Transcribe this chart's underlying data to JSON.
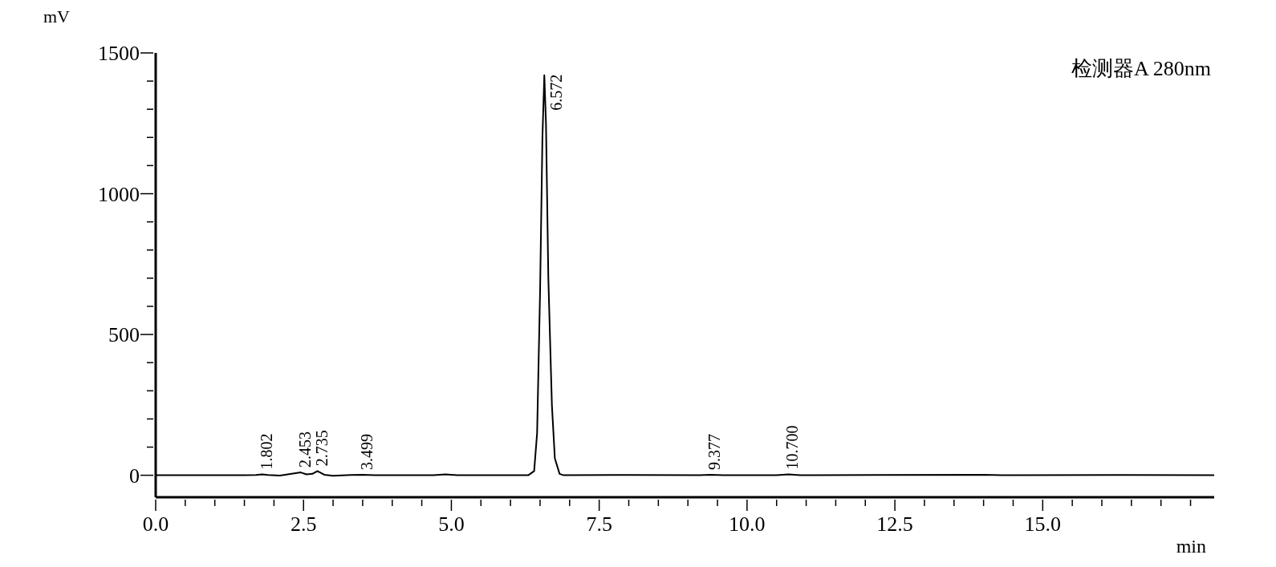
{
  "chart_data": {
    "type": "line",
    "xlabel": "min",
    "ylabel": "mV",
    "x": [
      0,
      1.5,
      1.7,
      1.8,
      1.9,
      2.1,
      2.3,
      2.453,
      2.55,
      2.65,
      2.735,
      2.85,
      3.0,
      3.3,
      3.5,
      3.7,
      4.7,
      4.9,
      5.1,
      6.3,
      6.4,
      6.45,
      6.5,
      6.54,
      6.572,
      6.6,
      6.64,
      6.7,
      6.75,
      6.83,
      6.9,
      8.0,
      9.2,
      9.377,
      9.6,
      10.5,
      10.7,
      10.9,
      12.2,
      14.0,
      14.3,
      16.3,
      17.9
    ],
    "series": [
      {
        "color": "#000000",
        "values": [
          0,
          0,
          1,
          3,
          1,
          -1,
          5,
          10,
          3,
          5,
          15,
          2,
          -2,
          1,
          2,
          0,
          0,
          3,
          0,
          0,
          15,
          150,
          650,
          1200,
          1421,
          1250,
          700,
          250,
          60,
          5,
          0,
          1,
          0,
          2,
          0,
          0,
          3,
          0,
          1,
          2,
          0,
          1,
          0
        ]
      }
    ],
    "xlim": [
      0,
      17.9
    ],
    "xticks": [
      {
        "value": 0,
        "label": "0.0"
      },
      {
        "value": 0.5,
        "label": null
      },
      {
        "value": 1,
        "label": null
      },
      {
        "value": 1.5,
        "label": null
      },
      {
        "value": 2,
        "label": null
      },
      2.5,
      {
        "value": 3,
        "label": null
      },
      {
        "value": 3.5,
        "label": null
      },
      {
        "value": 4,
        "label": null
      },
      {
        "value": 4.5,
        "label": null
      },
      {
        "value": 5,
        "label": "5.0"
      },
      {
        "value": 5.5,
        "label": null
      },
      {
        "value": 6,
        "label": null
      },
      {
        "value": 6.5,
        "label": null
      },
      {
        "value": 7,
        "label": null
      },
      7.5,
      {
        "value": 8,
        "label": null
      },
      {
        "value": 8.5,
        "label": null
      },
      {
        "value": 9,
        "label": null
      },
      {
        "value": 9.5,
        "label": null
      },
      {
        "value": 10,
        "label": "10.0"
      },
      {
        "value": 10.5,
        "label": null
      },
      {
        "value": 11,
        "label": null
      },
      {
        "value": 11.5,
        "label": null
      },
      {
        "value": 12,
        "label": null
      },
      12.5,
      {
        "value": 13,
        "label": null
      },
      {
        "value": 13.5,
        "label": null
      },
      {
        "value": 14,
        "label": null
      },
      {
        "value": 14.5,
        "label": null
      },
      {
        "value": 15,
        "label": "15.0"
      },
      {
        "value": 15.5,
        "label": null
      },
      {
        "value": 16,
        "label": null
      },
      {
        "value": 16.5,
        "label": null
      },
      {
        "value": 17,
        "label": null
      },
      {
        "value": 17.5,
        "label": null
      }
    ],
    "ylim": [
      -78,
      1500
    ],
    "yticks": [
      0,
      {
        "value": 100,
        "label": null
      },
      {
        "value": 200,
        "label": null
      },
      {
        "value": 300,
        "label": null
      },
      {
        "value": 400,
        "label": null
      },
      500,
      {
        "value": 600,
        "label": null
      },
      {
        "value": 700,
        "label": null
      },
      {
        "value": 800,
        "label": null
      },
      {
        "value": 900,
        "label": null
      },
      1000,
      {
        "value": 1100,
        "label": null
      },
      {
        "value": 1200,
        "label": null
      },
      {
        "value": 1300,
        "label": null
      },
      {
        "value": 1400,
        "label": null
      },
      1500
    ],
    "grid": false,
    "legend": false,
    "marker": "none",
    "line_style": "solid",
    "annotations": [
      "检测器A 280nm",
      {
        "text": "1.802",
        "x": 1.802,
        "y": 3
      },
      {
        "text": "2.453",
        "x": 2.453,
        "y": 10
      },
      {
        "text": "2.735",
        "x": 2.735,
        "y": 15
      },
      {
        "text": "3.499",
        "x": 3.499,
        "y": 2
      },
      {
        "text": "6.572",
        "x": 6.572,
        "y": 1421
      },
      {
        "text": "9.377",
        "x": 9.377,
        "y": 2
      },
      {
        "text": "10.700",
        "x": 10.7,
        "y": 3
      }
    ]
  }
}
